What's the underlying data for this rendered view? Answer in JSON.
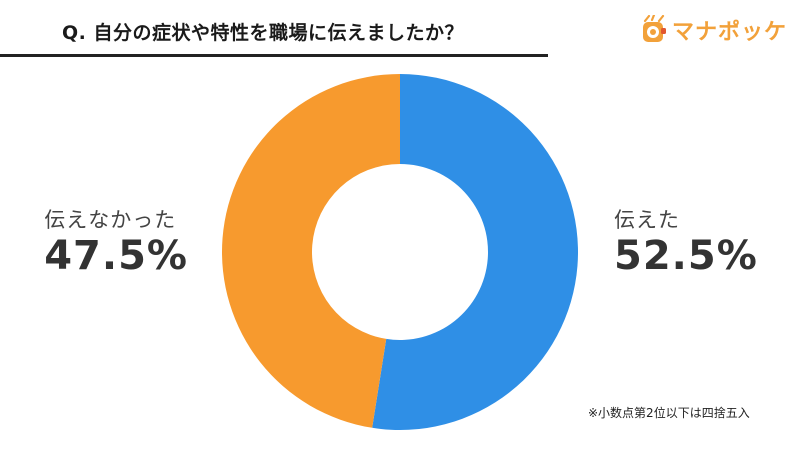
{
  "question": "Q. 自分の症状や特性を職場に伝えましたか？",
  "brand": {
    "name": "マナポッケ",
    "color": "#f2a13a"
  },
  "footnote": "※小数点第2位以下は四捨五入",
  "chart_data": {
    "type": "pie",
    "style": "donut",
    "title": "",
    "categories": [
      "伝えた",
      "伝えなかった"
    ],
    "values": [
      52.5,
      47.5
    ],
    "value_labels": [
      "52.5%",
      "47.5%"
    ],
    "unit": "%",
    "colors": [
      "#2f8fe6",
      "#f79a2e"
    ],
    "start_angle_deg": 0,
    "direction": "clockwise",
    "legend": "none",
    "label_placement": "outside-left-right"
  }
}
